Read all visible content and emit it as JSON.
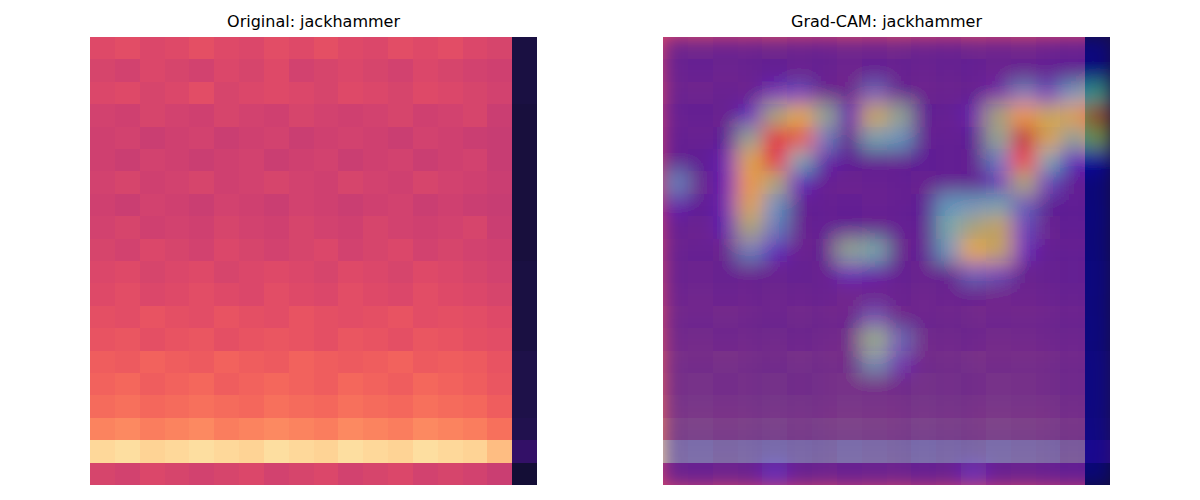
{
  "chart_data": [
    {
      "type": "heatmap",
      "title": "Original: jackhammer",
      "color": "magma",
      "zlim": [
        0,
        1
      ],
      "tick_labels": false,
      "values": [
        [
          0.6,
          0.61,
          0.59,
          0.6,
          0.62,
          0.6,
          0.59,
          0.61,
          0.6,
          0.62,
          0.6,
          0.59,
          0.61,
          0.6,
          0.61,
          0.59,
          0.58,
          0.12
        ],
        [
          0.58,
          0.57,
          0.59,
          0.58,
          0.57,
          0.59,
          0.58,
          0.6,
          0.57,
          0.58,
          0.59,
          0.58,
          0.57,
          0.59,
          0.58,
          0.57,
          0.56,
          0.12
        ],
        [
          0.59,
          0.6,
          0.58,
          0.59,
          0.61,
          0.58,
          0.59,
          0.6,
          0.59,
          0.58,
          0.6,
          0.59,
          0.58,
          0.6,
          0.59,
          0.58,
          0.57,
          0.12
        ],
        [
          0.57,
          0.56,
          0.58,
          0.57,
          0.56,
          0.58,
          0.57,
          0.56,
          0.58,
          0.57,
          0.56,
          0.57,
          0.58,
          0.56,
          0.57,
          0.58,
          0.55,
          0.11
        ],
        [
          0.56,
          0.57,
          0.55,
          0.56,
          0.57,
          0.55,
          0.56,
          0.57,
          0.55,
          0.56,
          0.57,
          0.56,
          0.55,
          0.57,
          0.56,
          0.55,
          0.54,
          0.11
        ],
        [
          0.56,
          0.55,
          0.57,
          0.56,
          0.55,
          0.56,
          0.57,
          0.55,
          0.56,
          0.57,
          0.55,
          0.56,
          0.57,
          0.55,
          0.56,
          0.57,
          0.54,
          0.11
        ],
        [
          0.57,
          0.58,
          0.56,
          0.57,
          0.58,
          0.56,
          0.57,
          0.58,
          0.57,
          0.56,
          0.58,
          0.57,
          0.56,
          0.58,
          0.57,
          0.56,
          0.55,
          0.11
        ],
        [
          0.56,
          0.55,
          0.57,
          0.56,
          0.55,
          0.57,
          0.56,
          0.55,
          0.57,
          0.56,
          0.55,
          0.56,
          0.57,
          0.55,
          0.56,
          0.55,
          0.54,
          0.11
        ],
        [
          0.57,
          0.58,
          0.56,
          0.57,
          0.56,
          0.58,
          0.57,
          0.56,
          0.58,
          0.57,
          0.56,
          0.58,
          0.57,
          0.56,
          0.57,
          0.58,
          0.55,
          0.11
        ],
        [
          0.58,
          0.57,
          0.59,
          0.58,
          0.57,
          0.59,
          0.58,
          0.57,
          0.58,
          0.59,
          0.57,
          0.58,
          0.59,
          0.57,
          0.58,
          0.57,
          0.56,
          0.11
        ],
        [
          0.59,
          0.6,
          0.58,
          0.59,
          0.6,
          0.58,
          0.59,
          0.6,
          0.59,
          0.58,
          0.6,
          0.59,
          0.58,
          0.6,
          0.59,
          0.58,
          0.57,
          0.12
        ],
        [
          0.6,
          0.61,
          0.59,
          0.6,
          0.61,
          0.6,
          0.59,
          0.61,
          0.6,
          0.59,
          0.61,
          0.6,
          0.59,
          0.61,
          0.6,
          0.59,
          0.58,
          0.12
        ],
        [
          0.62,
          0.61,
          0.63,
          0.62,
          0.61,
          0.63,
          0.62,
          0.61,
          0.63,
          0.62,
          0.61,
          0.62,
          0.63,
          0.61,
          0.62,
          0.61,
          0.6,
          0.12
        ],
        [
          0.63,
          0.64,
          0.62,
          0.63,
          0.64,
          0.62,
          0.63,
          0.64,
          0.63,
          0.62,
          0.64,
          0.63,
          0.62,
          0.64,
          0.63,
          0.62,
          0.61,
          0.12
        ],
        [
          0.66,
          0.65,
          0.67,
          0.66,
          0.65,
          0.67,
          0.66,
          0.65,
          0.67,
          0.66,
          0.65,
          0.66,
          0.67,
          0.65,
          0.66,
          0.65,
          0.63,
          0.13
        ],
        [
          0.67,
          0.68,
          0.66,
          0.67,
          0.68,
          0.66,
          0.67,
          0.68,
          0.67,
          0.66,
          0.68,
          0.67,
          0.66,
          0.68,
          0.67,
          0.66,
          0.64,
          0.13
        ],
        [
          0.69,
          0.7,
          0.68,
          0.69,
          0.7,
          0.69,
          0.68,
          0.7,
          0.69,
          0.68,
          0.7,
          0.69,
          0.68,
          0.7,
          0.69,
          0.68,
          0.66,
          0.13
        ],
        [
          0.74,
          0.75,
          0.73,
          0.74,
          0.75,
          0.73,
          0.74,
          0.75,
          0.74,
          0.73,
          0.75,
          0.74,
          0.73,
          0.75,
          0.74,
          0.73,
          0.7,
          0.14
        ],
        [
          0.92,
          0.93,
          0.91,
          0.92,
          0.93,
          0.92,
          0.91,
          0.93,
          0.92,
          0.91,
          0.93,
          0.92,
          0.91,
          0.93,
          0.92,
          0.91,
          0.86,
          0.18
        ],
        [
          0.58,
          0.57,
          0.59,
          0.58,
          0.57,
          0.58,
          0.59,
          0.57,
          0.58,
          0.59,
          0.57,
          0.58,
          0.59,
          0.57,
          0.58,
          0.57,
          0.55,
          0.1
        ]
      ]
    },
    {
      "type": "overlay",
      "title": "Grad-CAM: jackhammer",
      "color": "jet",
      "zlim": [
        0,
        1
      ],
      "tick_labels": false,
      "values": [
        [
          0.05,
          0.05,
          0.05,
          0.05,
          0.05,
          0.05,
          0.05,
          0.05,
          0.05,
          0.05,
          0.05,
          0.05,
          0.05,
          0.05,
          0.05,
          0.05,
          0.05,
          0.05
        ],
        [
          0.05,
          0.05,
          0.05,
          0.05,
          0.05,
          0.05,
          0.05,
          0.05,
          0.05,
          0.05,
          0.05,
          0.05,
          0.05,
          0.05,
          0.05,
          0.05,
          0.05,
          0.05
        ],
        [
          0.05,
          0.05,
          0.05,
          0.05,
          0.15,
          0.2,
          0.05,
          0.05,
          0.25,
          0.05,
          0.05,
          0.05,
          0.05,
          0.1,
          0.3,
          0.2,
          0.35,
          0.45
        ],
        [
          0.05,
          0.05,
          0.05,
          0.15,
          0.5,
          0.6,
          0.45,
          0.1,
          0.55,
          0.45,
          0.05,
          0.05,
          0.1,
          0.5,
          0.65,
          0.55,
          0.6,
          0.75
        ],
        [
          0.05,
          0.05,
          0.05,
          0.45,
          0.9,
          0.75,
          0.3,
          0.05,
          0.4,
          0.35,
          0.05,
          0.05,
          0.05,
          0.45,
          0.95,
          0.6,
          0.45,
          0.55
        ],
        [
          0.05,
          0.05,
          0.1,
          0.6,
          0.85,
          0.4,
          0.1,
          0.05,
          0.05,
          0.05,
          0.05,
          0.05,
          0.05,
          0.3,
          0.8,
          0.4,
          0.15,
          0.1
        ],
        [
          0.3,
          0.05,
          0.1,
          0.65,
          0.5,
          0.15,
          0.05,
          0.05,
          0.05,
          0.05,
          0.05,
          0.05,
          0.05,
          0.15,
          0.5,
          0.2,
          0.05,
          0.05
        ],
        [
          0.1,
          0.05,
          0.1,
          0.6,
          0.35,
          0.05,
          0.05,
          0.05,
          0.05,
          0.05,
          0.05,
          0.35,
          0.35,
          0.4,
          0.25,
          0.05,
          0.05,
          0.05
        ],
        [
          0.05,
          0.05,
          0.1,
          0.5,
          0.3,
          0.05,
          0.05,
          0.05,
          0.05,
          0.05,
          0.05,
          0.4,
          0.5,
          0.55,
          0.2,
          0.05,
          0.05,
          0.05
        ],
        [
          0.05,
          0.05,
          0.05,
          0.3,
          0.15,
          0.05,
          0.05,
          0.45,
          0.4,
          0.05,
          0.05,
          0.35,
          0.6,
          0.55,
          0.15,
          0.05,
          0.05,
          0.05
        ],
        [
          0.05,
          0.05,
          0.05,
          0.05,
          0.05,
          0.05,
          0.05,
          0.15,
          0.1,
          0.05,
          0.05,
          0.05,
          0.25,
          0.2,
          0.05,
          0.05,
          0.05,
          0.05
        ],
        [
          0.05,
          0.05,
          0.05,
          0.05,
          0.05,
          0.05,
          0.05,
          0.05,
          0.05,
          0.05,
          0.05,
          0.05,
          0.05,
          0.05,
          0.05,
          0.05,
          0.05,
          0.05
        ],
        [
          0.05,
          0.05,
          0.05,
          0.05,
          0.05,
          0.05,
          0.05,
          0.05,
          0.2,
          0.05,
          0.05,
          0.05,
          0.05,
          0.05,
          0.05,
          0.05,
          0.05,
          0.05
        ],
        [
          0.05,
          0.05,
          0.05,
          0.05,
          0.05,
          0.05,
          0.05,
          0.05,
          0.45,
          0.25,
          0.05,
          0.05,
          0.05,
          0.05,
          0.05,
          0.05,
          0.05,
          0.05
        ],
        [
          0.05,
          0.05,
          0.05,
          0.05,
          0.05,
          0.05,
          0.05,
          0.05,
          0.3,
          0.15,
          0.05,
          0.05,
          0.05,
          0.05,
          0.05,
          0.05,
          0.05,
          0.05
        ],
        [
          0.05,
          0.05,
          0.05,
          0.05,
          0.05,
          0.05,
          0.05,
          0.05,
          0.05,
          0.05,
          0.05,
          0.05,
          0.05,
          0.05,
          0.05,
          0.05,
          0.05,
          0.05
        ],
        [
          0.05,
          0.05,
          0.05,
          0.05,
          0.05,
          0.05,
          0.05,
          0.05,
          0.05,
          0.05,
          0.05,
          0.05,
          0.05,
          0.05,
          0.05,
          0.05,
          0.05,
          0.05
        ],
        [
          0.05,
          0.05,
          0.05,
          0.05,
          0.05,
          0.05,
          0.05,
          0.05,
          0.05,
          0.05,
          0.05,
          0.05,
          0.05,
          0.05,
          0.05,
          0.05,
          0.05,
          0.05
        ],
        [
          0.05,
          0.05,
          0.05,
          0.05,
          0.05,
          0.05,
          0.05,
          0.05,
          0.05,
          0.05,
          0.05,
          0.05,
          0.05,
          0.05,
          0.05,
          0.05,
          0.05,
          0.05
        ],
        [
          0.05,
          0.05,
          0.05,
          0.05,
          0.15,
          0.05,
          0.05,
          0.05,
          0.05,
          0.05,
          0.05,
          0.05,
          0.15,
          0.05,
          0.05,
          0.05,
          0.05,
          0.05
        ]
      ]
    }
  ]
}
